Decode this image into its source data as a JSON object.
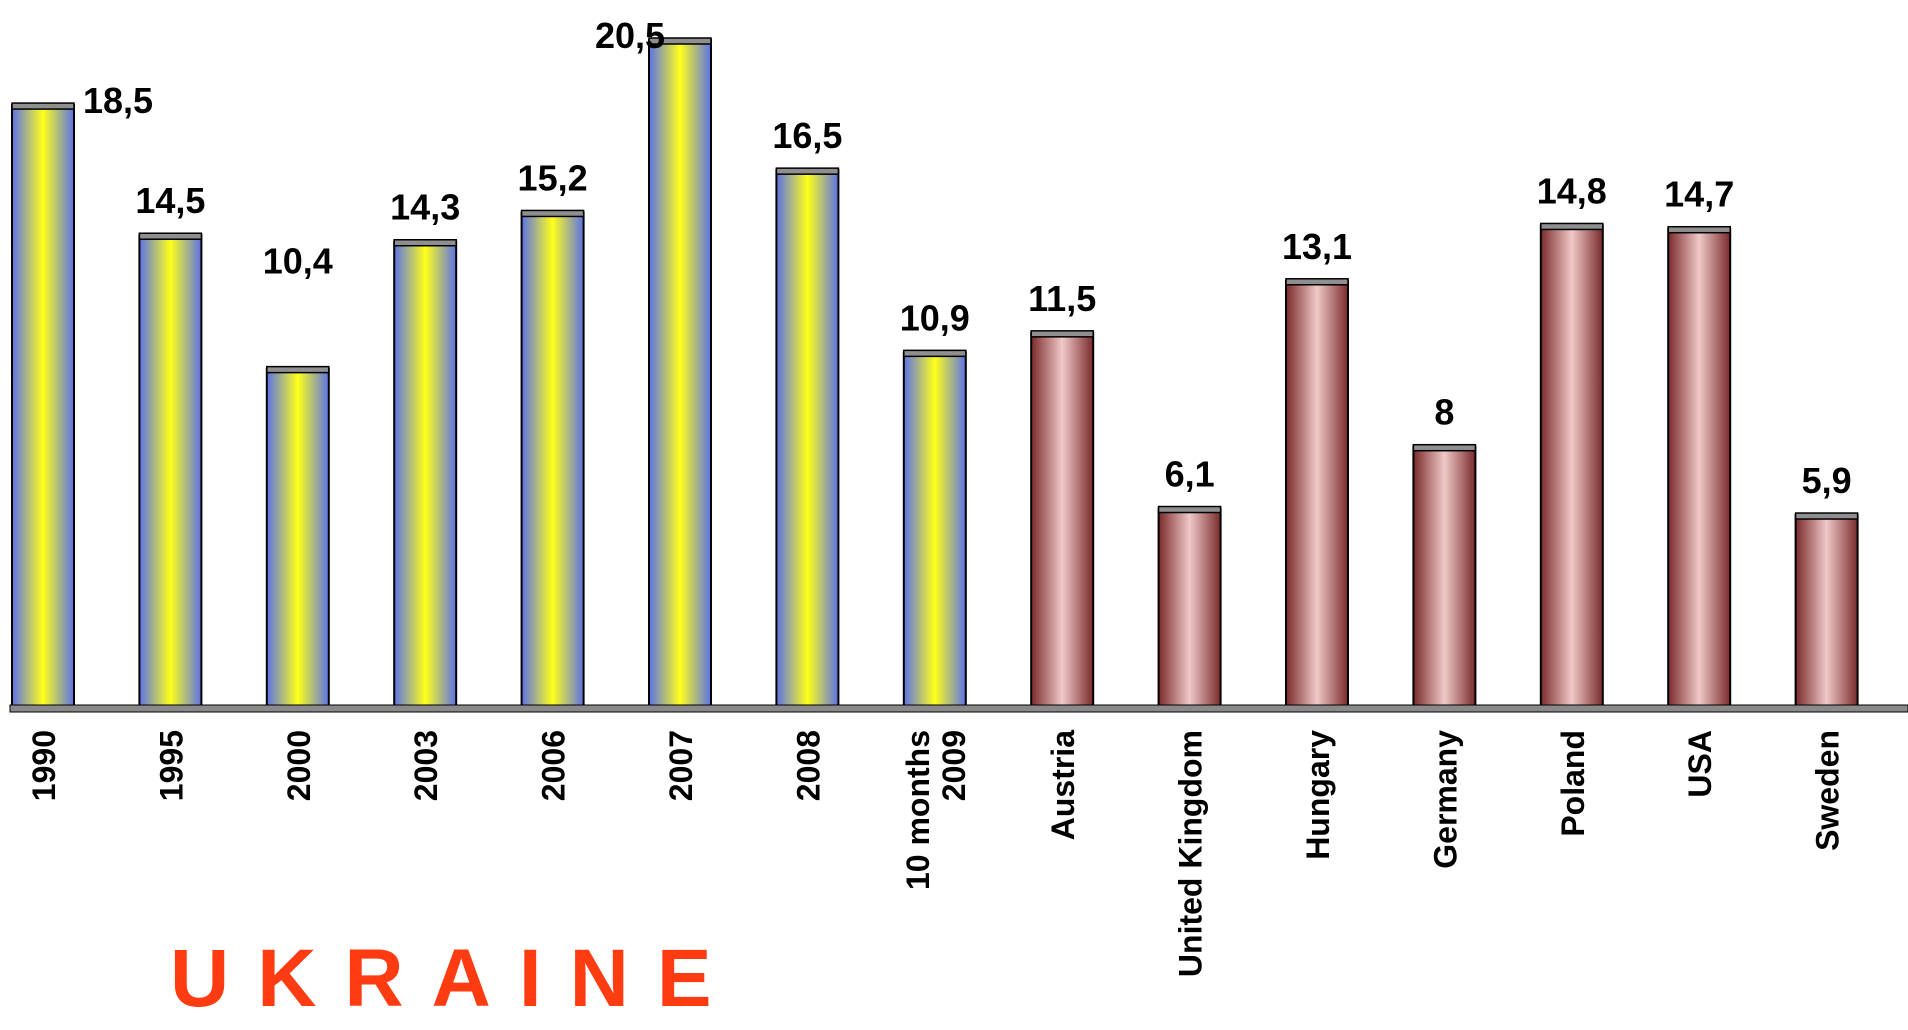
{
  "group_label": "UKRAINE",
  "colors": {
    "ukraine_bar_edge": "#5b72e8",
    "ukraine_bar_center": "#ffff1a",
    "other_bar_edge": "#7a2a2a",
    "other_bar_center": "#f0c9c9",
    "axis_band": "#8a8a8a",
    "text": "#000000",
    "group_label": "#ff3b12"
  },
  "chart_data": {
    "type": "bar",
    "title": "",
    "xlabel": "",
    "ylabel": "",
    "grid": false,
    "legend": "none",
    "ylim": [
      0,
      20.5
    ],
    "categories": [
      "1990",
      "1995",
      "2000",
      "2003",
      "2006",
      "2007",
      "2008",
      "10 months 2009",
      "Austria",
      "United Kingdom",
      "Hungary",
      "Germany",
      "Poland",
      "USA",
      "Sweden"
    ],
    "category_lines": [
      [
        "1990"
      ],
      [
        "1995"
      ],
      [
        "2000"
      ],
      [
        "2003"
      ],
      [
        "2006"
      ],
      [
        "2007"
      ],
      [
        "2008"
      ],
      [
        "10 months",
        "2009"
      ],
      [
        "Austria"
      ],
      [
        "United Kingdom"
      ],
      [
        "Hungary"
      ],
      [
        "Germany"
      ],
      [
        "Poland"
      ],
      [
        "USA"
      ],
      [
        "Sweden"
      ]
    ],
    "values": [
      18.5,
      14.5,
      10.4,
      14.3,
      15.2,
      20.5,
      16.5,
      10.9,
      11.5,
      6.1,
      13.1,
      8,
      14.8,
      14.7,
      5.9
    ],
    "value_labels": [
      "18,5",
      "14,5",
      "10,4",
      "14,3",
      "15,2",
      "20,5",
      "16,5",
      "10,9",
      "11,5",
      "6,1",
      "13,1",
      "8",
      "14,8",
      "14,7",
      "5,9"
    ],
    "groups": [
      "ukraine",
      "ukraine",
      "ukraine",
      "ukraine",
      "ukraine",
      "ukraine",
      "ukraine",
      "ukraine",
      "other",
      "other",
      "other",
      "other",
      "other",
      "other",
      "other"
    ]
  }
}
